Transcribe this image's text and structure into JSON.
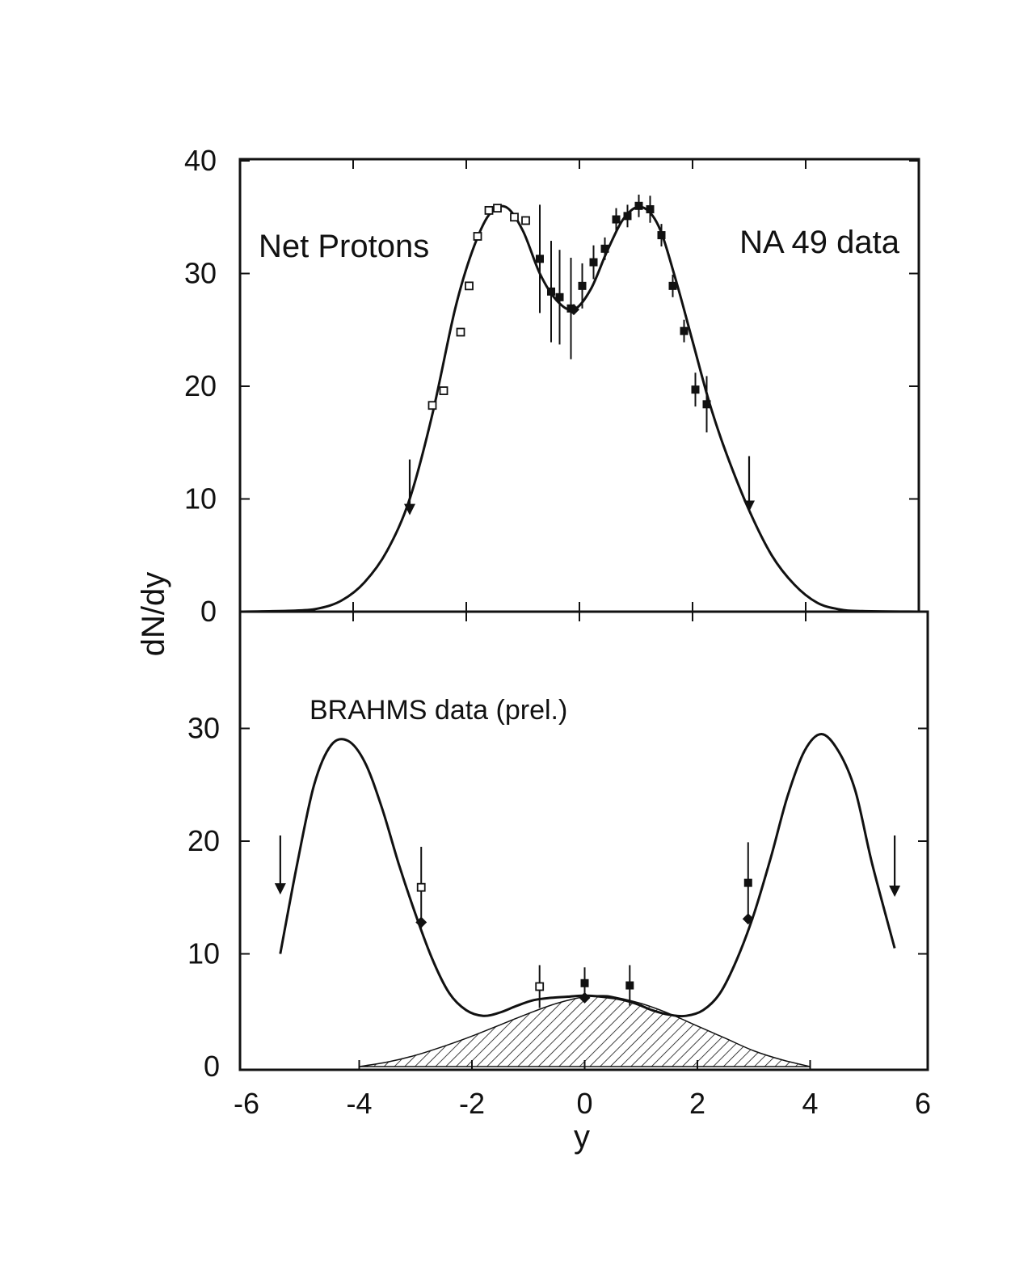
{
  "chart_data": [
    {
      "type": "scatter",
      "panel": "top",
      "annotations": [
        "Net Protons",
        "NA 49 data"
      ],
      "ylabel": "dN/dy",
      "xlim": [
        -6,
        6
      ],
      "ylim": [
        0,
        40
      ],
      "yticks": [
        "0",
        "10",
        "20",
        "30",
        "40"
      ],
      "grid": false,
      "series": [
        {
          "marker": "open-square",
          "x": [
            -2.6,
            -2.4,
            -2.1,
            -1.95,
            -1.8,
            -1.6,
            -1.45,
            -1.15,
            -0.95
          ],
          "y": [
            18.3,
            19.6,
            24.8,
            28.9,
            33.3,
            35.6,
            35.8,
            35.0,
            34.7
          ]
        },
        {
          "marker": "filled-square",
          "x": [
            -0.7,
            -0.5,
            -0.35,
            -0.15,
            0.05,
            0.25,
            0.45,
            0.65,
            0.85,
            1.05,
            1.25,
            1.45,
            1.65,
            1.85,
            2.05,
            2.25
          ],
          "y": [
            31.3,
            28.4,
            27.9,
            26.9,
            28.9,
            31.0,
            32.2,
            34.8,
            35.1,
            36.0,
            35.7,
            33.4,
            28.9,
            24.9,
            19.7,
            18.4
          ],
          "err": [
            4.8,
            4.5,
            4.2,
            4.5,
            2.0,
            1.5,
            1.0,
            1.0,
            1.0,
            1.0,
            1.2,
            1.0,
            1.0,
            1.0,
            1.5,
            2.5
          ]
        },
        {
          "marker": "filled-diamond",
          "x": [
            -0.1
          ],
          "y": [
            26.8
          ]
        }
      ],
      "fit_curve": {
        "x": [
          -6,
          -5,
          -4.6,
          -4.2,
          -3.8,
          -3.4,
          -3.0,
          -2.6,
          -2.2,
          -1.9,
          -1.6,
          -1.3,
          -1.0,
          -0.7,
          -0.4,
          -0.1,
          0.2,
          0.5,
          0.8,
          1.1,
          1.4,
          1.7,
          2.0,
          2.3,
          2.6,
          3.0,
          3.4,
          3.8,
          4.2,
          4.6,
          5.0,
          6.0
        ],
        "y": [
          0,
          0.1,
          0.3,
          1.0,
          2.6,
          5.4,
          10.0,
          17.5,
          26.8,
          31.9,
          35.2,
          35.9,
          33.8,
          30.0,
          27.6,
          26.8,
          28.6,
          32.1,
          35.0,
          35.9,
          34.2,
          29.5,
          24.0,
          18.5,
          14.0,
          9.0,
          5.0,
          2.4,
          0.8,
          0.2,
          0.05,
          0
        ]
      },
      "arrows": [
        {
          "x": -3.0,
          "y_from": 13.5,
          "y_to": 8.7
        },
        {
          "x": 3.0,
          "y_from": 13.8,
          "y_to": 9.0
        }
      ]
    },
    {
      "type": "scatter",
      "panel": "bottom",
      "annotations": [
        "BRAHMS data (prel.)"
      ],
      "xlabel": "y",
      "xlim": [
        -6,
        6
      ],
      "ylim": [
        0,
        40
      ],
      "xticks": [
        "-6",
        "-4",
        "-2",
        "0",
        "2",
        "4",
        "6"
      ],
      "yticks": [
        "0",
        "10",
        "20",
        "30"
      ],
      "grid": false,
      "series": [
        {
          "marker": "open-square",
          "x": [
            -2.9,
            -0.8
          ],
          "y": [
            15.9,
            7.1
          ],
          "err": [
            3.6,
            1.9
          ]
        },
        {
          "marker": "filled-square",
          "x": [
            0.0,
            0.8,
            2.9
          ],
          "y": [
            7.4,
            7.2,
            16.3
          ],
          "err": [
            1.4,
            1.8,
            3.6
          ]
        },
        {
          "marker": "filled-diamond",
          "x": [
            -2.9,
            0.0,
            2.9
          ],
          "y": [
            12.8,
            6.1,
            13.1
          ]
        }
      ],
      "fit_curve": {
        "x": [
          -5.4,
          -5.1,
          -4.8,
          -4.5,
          -4.2,
          -3.9,
          -3.6,
          -3.3,
          -3.0,
          -2.7,
          -2.4,
          -2.1,
          -1.8,
          -1.5,
          -1.2,
          -0.9,
          -0.6,
          -0.3,
          0.0,
          0.3,
          0.6,
          0.9,
          1.2,
          1.5,
          1.8,
          2.1,
          2.4,
          2.7,
          3.0,
          3.3,
          3.6,
          3.9,
          4.2,
          4.5,
          4.8,
          5.1,
          5.5
        ],
        "y": [
          10.0,
          18.0,
          25.0,
          28.5,
          28.9,
          27.0,
          23.0,
          18.0,
          13.5,
          9.5,
          6.5,
          5.0,
          4.5,
          4.8,
          5.4,
          5.9,
          6.1,
          6.2,
          6.3,
          6.2,
          6.0,
          5.6,
          5.0,
          4.6,
          4.5,
          5.0,
          6.5,
          9.5,
          13.5,
          18.5,
          24.0,
          28.0,
          29.5,
          28.0,
          24.5,
          18.0,
          10.5
        ]
      },
      "shaded_curve": {
        "x": [
          -4.0,
          -3.5,
          -3.0,
          -2.5,
          -2.0,
          -1.5,
          -1.0,
          -0.5,
          0.0,
          0.3,
          0.5,
          1.0,
          1.5,
          2.0,
          2.5,
          3.0,
          3.5,
          4.0
        ],
        "y": [
          0,
          0.4,
          1.0,
          1.8,
          2.7,
          3.7,
          4.7,
          5.6,
          6.2,
          6.3,
          6.2,
          5.6,
          4.7,
          3.6,
          2.5,
          1.4,
          0.6,
          0
        ]
      },
      "arrows": [
        {
          "x": -5.4,
          "y_from": 20.5,
          "y_to": 15.4
        },
        {
          "x": 5.5,
          "y_from": 20.5,
          "y_to": 15.2
        }
      ]
    }
  ]
}
